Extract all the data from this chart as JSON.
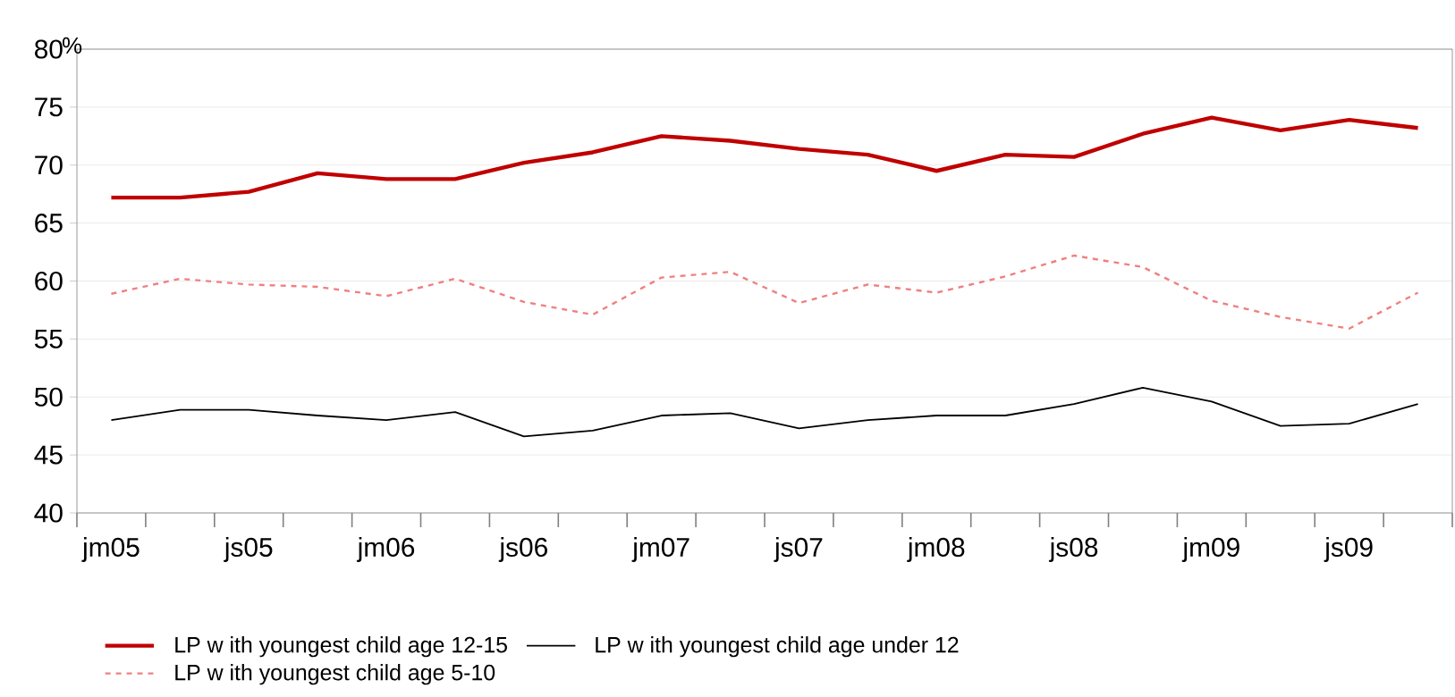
{
  "chart_data": {
    "type": "line",
    "ylabel": "%",
    "categories": [
      "jm05",
      null,
      "js05",
      null,
      "jm06",
      null,
      "js06",
      null,
      "jm07",
      null,
      "js07",
      null,
      "jm08",
      null,
      "js08",
      null,
      "jm09",
      null,
      "js09",
      null
    ],
    "series": [
      {
        "name": "LP w ith youngest child age 12-15",
        "color": "#c00000",
        "line_style": "solid",
        "values": [
          67.2,
          67.2,
          67.7,
          69.3,
          68.8,
          68.8,
          70.2,
          71.1,
          72.5,
          72.1,
          71.4,
          70.9,
          69.5,
          70.9,
          70.7,
          72.7,
          74.1,
          73.0,
          73.9,
          73.2
        ]
      },
      {
        "name": "LP w ith youngest child age under 12",
        "color": "#000000",
        "line_style": "solid",
        "values": [
          48.0,
          48.9,
          48.9,
          48.4,
          48.0,
          48.7,
          46.6,
          47.1,
          48.4,
          48.6,
          47.3,
          48.0,
          48.4,
          48.4,
          49.4,
          50.8,
          49.6,
          47.5,
          47.7,
          49.4
        ]
      },
      {
        "name": "LP w ith youngest child age 5-10",
        "color": "#f08080",
        "line_style": "dashed",
        "values": [
          58.9,
          60.2,
          59.7,
          59.5,
          58.7,
          60.2,
          58.2,
          57.1,
          60.3,
          60.8,
          58.1,
          59.7,
          59.0,
          60.4,
          62.2,
          61.2,
          58.3,
          56.9,
          55.9,
          59.0
        ]
      }
    ],
    "ylim": [
      40,
      80
    ],
    "yticks": [
      40,
      45,
      50,
      55,
      60,
      65,
      70,
      75,
      80
    ],
    "grid": "y",
    "legend": "bottom"
  }
}
